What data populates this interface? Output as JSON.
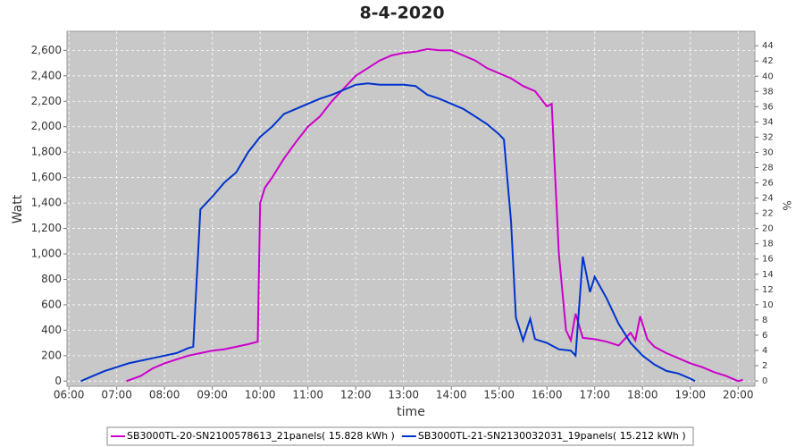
{
  "chart_data": {
    "type": "line",
    "title": "8-4-2020",
    "x_label": "time",
    "y_label": "Watt",
    "y2_label": "%",
    "xlim": [
      5.96,
      20.35
    ],
    "xticks": [
      {
        "value": 6,
        "label": "06:00"
      },
      {
        "value": 7,
        "label": "07:00"
      },
      {
        "value": 8,
        "label": "08:00"
      },
      {
        "value": 9,
        "label": "09:00"
      },
      {
        "value": 10,
        "label": "10:00"
      },
      {
        "value": 11,
        "label": "11:00"
      },
      {
        "value": 12,
        "label": "12:00"
      },
      {
        "value": 13,
        "label": "13:00"
      },
      {
        "value": 14,
        "label": "14:00"
      },
      {
        "value": 15,
        "label": "15:00"
      },
      {
        "value": 16,
        "label": "16:00"
      },
      {
        "value": 17,
        "label": "17:00"
      },
      {
        "value": 18,
        "label": "18:00"
      },
      {
        "value": 19,
        "label": "19:00"
      },
      {
        "value": 20,
        "label": "20:00"
      }
    ],
    "ylim": [
      -40,
      2750
    ],
    "yticks": [
      0,
      200,
      400,
      600,
      800,
      {
        "value": 1000,
        "label": "1,000"
      },
      {
        "value": 1200,
        "label": "1,200"
      },
      {
        "value": 1400,
        "label": "1,400"
      },
      {
        "value": 1600,
        "label": "1,600"
      },
      {
        "value": 1800,
        "label": "1,800"
      },
      {
        "value": 2000,
        "label": "2,000"
      },
      {
        "value": 2200,
        "label": "2,200"
      },
      {
        "value": 2400,
        "label": "2,400"
      },
      {
        "value": 2600,
        "label": "2,600"
      }
    ],
    "y2lim": [
      -0.7,
      45.9
    ],
    "y2ticks": [
      0,
      2,
      4,
      6,
      8,
      10,
      12,
      14,
      16,
      18,
      20,
      22,
      24,
      26,
      28,
      30,
      32,
      34,
      36,
      38,
      40,
      42,
      44
    ],
    "grid": true,
    "series": [
      {
        "name": "SB3000TL-20-SN2100578613_21panels( 15.828 kWh )",
        "color": "#cc00cc",
        "x": [
          7.2,
          7.5,
          7.75,
          8.0,
          8.25,
          8.5,
          8.75,
          9.0,
          9.25,
          9.5,
          9.75,
          9.95,
          10.0,
          10.1,
          10.25,
          10.5,
          10.75,
          11.0,
          11.25,
          11.5,
          11.75,
          12.0,
          12.25,
          12.5,
          12.75,
          13.0,
          13.25,
          13.5,
          13.75,
          14.0,
          14.25,
          14.5,
          14.75,
          15.0,
          15.25,
          15.5,
          15.75,
          16.0,
          16.1,
          16.25,
          16.4,
          16.5,
          16.6,
          16.75,
          17.0,
          17.25,
          17.5,
          17.75,
          17.85,
          17.95,
          18.1,
          18.25,
          18.5,
          18.75,
          19.0,
          19.25,
          19.5,
          19.75,
          20.0,
          20.1
        ],
        "values": [
          0,
          40,
          100,
          140,
          170,
          200,
          220,
          240,
          250,
          270,
          290,
          310,
          1400,
          1520,
          1600,
          1750,
          1880,
          2000,
          2080,
          2200,
          2300,
          2400,
          2460,
          2520,
          2560,
          2580,
          2590,
          2610,
          2600,
          2600,
          2560,
          2520,
          2460,
          2420,
          2380,
          2320,
          2280,
          2160,
          2180,
          1000,
          400,
          320,
          530,
          340,
          330,
          310,
          280,
          380,
          320,
          510,
          330,
          270,
          220,
          180,
          140,
          110,
          70,
          40,
          0,
          10
        ]
      },
      {
        "name": "SB3000TL-21-SN2130032031_19panels( 15.212 kWh )",
        "color": "#0033cc",
        "x": [
          6.25,
          6.5,
          6.75,
          7.0,
          7.25,
          7.5,
          7.75,
          8.0,
          8.25,
          8.5,
          8.6,
          8.75,
          9.0,
          9.25,
          9.5,
          9.75,
          10.0,
          10.25,
          10.5,
          10.75,
          11.0,
          11.25,
          11.5,
          11.75,
          12.0,
          12.25,
          12.5,
          12.75,
          13.0,
          13.25,
          13.5,
          13.75,
          14.0,
          14.25,
          14.5,
          14.75,
          15.0,
          15.1,
          15.25,
          15.35,
          15.5,
          15.65,
          15.75,
          16.0,
          16.25,
          16.5,
          16.6,
          16.75,
          16.9,
          17.0,
          17.25,
          17.5,
          17.75,
          18.0,
          18.25,
          18.5,
          18.75,
          19.0,
          19.1
        ],
        "values": [
          0,
          40,
          80,
          110,
          140,
          160,
          180,
          200,
          220,
          260,
          270,
          1350,
          1450,
          1560,
          1640,
          1800,
          1920,
          2000,
          2100,
          2140,
          2180,
          2220,
          2250,
          2290,
          2330,
          2340,
          2330,
          2330,
          2330,
          2320,
          2250,
          2220,
          2180,
          2140,
          2080,
          2020,
          1940,
          1900,
          1250,
          500,
          320,
          490,
          330,
          300,
          250,
          240,
          200,
          980,
          700,
          820,
          650,
          450,
          300,
          200,
          130,
          80,
          60,
          20,
          0
        ]
      }
    ]
  }
}
